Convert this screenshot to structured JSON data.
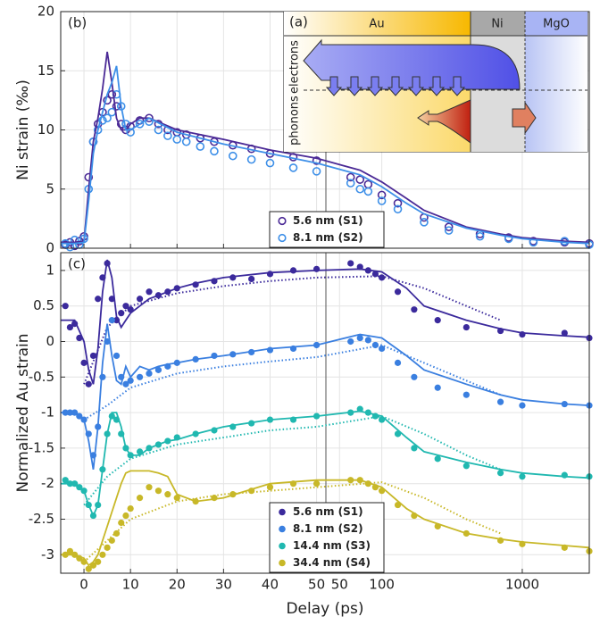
{
  "diagram": {
    "panel": "(a)",
    "labels": [
      "Au",
      "Ni",
      "MgO"
    ],
    "electrons": "electrons",
    "phonons": "phonons"
  },
  "chart_data": [
    {
      "type": "scatter",
      "panel": "(b)",
      "ylabel": "Ni strain (‰)",
      "ylim": [
        0,
        20
      ],
      "yticks": [
        0,
        5,
        10,
        15,
        20
      ],
      "grid": true,
      "marker": "open",
      "legend": "bottom-center",
      "x": [
        -4,
        -3,
        -2,
        -1,
        0,
        1,
        2,
        3,
        4,
        5,
        6,
        7,
        8,
        9,
        10,
        12,
        14,
        16,
        18,
        20,
        22,
        25,
        28,
        32,
        36,
        40,
        45,
        50,
        60,
        70,
        80,
        100,
        130,
        200,
        300,
        500,
        800,
        1200,
        2000,
        3000
      ],
      "series": [
        {
          "name": "5.6 nm (S1)",
          "color": "#4b2a96",
          "values": [
            0.3,
            0.5,
            0.2,
            0.6,
            1,
            6,
            9,
            10.5,
            11.5,
            12.5,
            13,
            12,
            10.5,
            10,
            10.3,
            10.8,
            11,
            10.5,
            10,
            9.8,
            9.6,
            9.3,
            9,
            8.7,
            8.4,
            8,
            7.7,
            7.4,
            6,
            5.8,
            5.4,
            4.5,
            3.8,
            2.6,
            1.8,
            1.2,
            0.9,
            0.6,
            0.5,
            0.4
          ]
        },
        {
          "name": "8.1 nm (S2)",
          "color": "#3d8fe8",
          "values": [
            0.4,
            0.1,
            0.7,
            0.3,
            0.8,
            5,
            9,
            10,
            10.8,
            11,
            11.5,
            13,
            12,
            10.5,
            9.8,
            10.5,
            10.7,
            10,
            9.5,
            9.2,
            9,
            8.6,
            8.2,
            7.8,
            7.5,
            7.2,
            6.8,
            6.5,
            5.5,
            5,
            4.8,
            4,
            3.3,
            2.2,
            1.5,
            1,
            0.8,
            0.5,
            0.6,
            0.3
          ]
        }
      ],
      "fit_x": [
        -5,
        -2,
        0,
        1,
        2,
        3,
        4,
        5,
        6,
        7,
        8,
        9,
        10,
        12,
        14,
        20,
        30,
        40,
        50,
        70,
        100,
        150,
        200,
        400,
        700,
        1000,
        2000,
        3000
      ],
      "fits": [
        {
          "color": "#4b2a96",
          "values": [
            0.5,
            0.5,
            0.6,
            5,
            9,
            11,
            13.5,
            16.6,
            14,
            11,
            10,
            10,
            10.5,
            11,
            11,
            10,
            9.2,
            8.3,
            7.6,
            6.6,
            5.6,
            4.2,
            3.2,
            1.8,
            1.2,
            0.9,
            0.6,
            0.5
          ]
        },
        {
          "color": "#3d8fe8",
          "values": [
            0.4,
            0.4,
            0.5,
            4,
            8,
            10,
            11.5,
            13,
            14,
            15.4,
            12,
            10,
            10,
            10.5,
            11,
            9.8,
            8.8,
            8,
            7.2,
            6.2,
            5.2,
            3.8,
            2.9,
            1.7,
            1.1,
            0.8,
            0.5,
            0.4
          ]
        }
      ]
    },
    {
      "type": "scatter",
      "panel": "(c)",
      "ylabel": "Normalized Au strain",
      "xlabel": "Delay (ps)",
      "ylim": [
        -3.26,
        1.25
      ],
      "yticks": [
        1,
        0.5,
        0,
        -0.5,
        -1,
        -1.5,
        -2,
        -2.5,
        -3
      ],
      "grid": true,
      "marker": "filled",
      "legend": "bottom-center",
      "xlim": [
        -5,
        3000
      ],
      "x_break": [
        52,
        40
      ],
      "xticks_linear": [
        0,
        10,
        20,
        30,
        40,
        50
      ],
      "xticks_log": [
        50,
        100,
        1000
      ],
      "x": [
        -4,
        -3,
        -2,
        -1,
        0,
        1,
        2,
        3,
        4,
        5,
        6,
        7,
        8,
        9,
        10,
        12,
        14,
        16,
        18,
        20,
        24,
        28,
        32,
        36,
        40,
        45,
        50,
        60,
        70,
        80,
        90,
        100,
        130,
        170,
        250,
        400,
        700,
        1000,
        2000,
        3000
      ],
      "series": [
        {
          "name": "5.6 nm (S1)",
          "color": "#3b2a9c",
          "values": [
            0.5,
            0.2,
            0.25,
            0.05,
            -0.3,
            -0.6,
            -0.2,
            0.6,
            0.9,
            1.1,
            0.6,
            0.3,
            0.4,
            0.5,
            0.45,
            0.6,
            0.7,
            0.65,
            0.7,
            0.75,
            0.8,
            0.85,
            0.9,
            0.88,
            0.95,
            1,
            1.02,
            1.1,
            1.05,
            1,
            0.95,
            0.9,
            0.7,
            0.45,
            0.3,
            0.2,
            0.15,
            0.1,
            0.12,
            0.05
          ]
        },
        {
          "name": "8.1 nm (S2)",
          "color": "#3a7fe0",
          "values": [
            -1,
            -1,
            -1,
            -1.05,
            -1.1,
            -1.3,
            -1.6,
            -1.2,
            -0.5,
            0,
            0.3,
            -0.2,
            -0.5,
            -0.6,
            -0.55,
            -0.5,
            -0.45,
            -0.4,
            -0.35,
            -0.3,
            -0.25,
            -0.2,
            -0.18,
            -0.15,
            -0.12,
            -0.1,
            -0.05,
            0,
            0.05,
            0.02,
            -0.05,
            -0.1,
            -0.3,
            -0.5,
            -0.65,
            -0.75,
            -0.85,
            -0.9,
            -0.88,
            -0.9
          ]
        },
        {
          "name": "14.4 nm (S3)",
          "color": "#20b8b0",
          "values": [
            -1.95,
            -2,
            -2,
            -2.05,
            -2.1,
            -2.3,
            -2.45,
            -2.3,
            -1.8,
            -1.3,
            -1.05,
            -1.1,
            -1.3,
            -1.5,
            -1.6,
            -1.55,
            -1.5,
            -1.45,
            -1.4,
            -1.35,
            -1.3,
            -1.25,
            -1.2,
            -1.15,
            -1.1,
            -1.1,
            -1.05,
            -1,
            -0.95,
            -1,
            -1.05,
            -1.1,
            -1.3,
            -1.5,
            -1.65,
            -1.75,
            -1.85,
            -1.9,
            -1.88,
            -1.9
          ]
        },
        {
          "name": "34.4 nm (S4)",
          "color": "#c8b828",
          "values": [
            -3,
            -2.95,
            -3,
            -3.05,
            -3.1,
            -3.2,
            -3.15,
            -3.1,
            -3,
            -2.9,
            -2.8,
            -2.7,
            -2.55,
            -2.45,
            -2.35,
            -2.2,
            -2.05,
            -2.1,
            -2.15,
            -2.2,
            -2.25,
            -2.2,
            -2.15,
            -2.1,
            -2.05,
            -2,
            -2,
            -1.95,
            -1.95,
            -2,
            -2.05,
            -2.1,
            -2.3,
            -2.45,
            -2.6,
            -2.7,
            -2.8,
            -2.85,
            -2.9,
            -2.95
          ]
        }
      ],
      "fit_x": [
        -5,
        -2,
        0,
        1,
        2,
        3,
        4,
        5,
        6,
        7,
        8,
        9,
        10,
        12,
        14,
        16,
        18,
        20,
        24,
        30,
        40,
        50,
        70,
        100,
        150,
        200,
        400,
        700,
        1000,
        2000,
        3000
      ],
      "fits": [
        {
          "color": "#3b2a9c",
          "values": [
            0.3,
            0.3,
            0,
            -0.4,
            -0.6,
            -0.1,
            0.7,
            1.15,
            0.9,
            0.35,
            0.2,
            0.3,
            0.4,
            0.5,
            0.6,
            0.65,
            0.7,
            0.75,
            0.82,
            0.9,
            0.97,
            1,
            1.02,
            0.98,
            0.75,
            0.5,
            0.3,
            0.18,
            0.12,
            0.08,
            0.06
          ]
        },
        {
          "color": "#3a7fe0",
          "values": [
            -1,
            -1,
            -1.1,
            -1.4,
            -1.8,
            -1.2,
            -0.3,
            0.25,
            -0.2,
            -0.55,
            -0.6,
            -0.35,
            -0.5,
            -0.35,
            -0.4,
            -0.35,
            -0.32,
            -0.3,
            -0.25,
            -0.2,
            -0.1,
            -0.05,
            0.1,
            0.05,
            -0.2,
            -0.4,
            -0.6,
            -0.75,
            -0.82,
            -0.88,
            -0.9
          ]
        },
        {
          "color": "#20b8b0",
          "values": [
            -2,
            -2,
            -2.1,
            -2.3,
            -2.45,
            -2.3,
            -1.8,
            -1.3,
            -1,
            -1,
            -1.2,
            -1.5,
            -1.6,
            -1.6,
            -1.5,
            -1.45,
            -1.4,
            -1.38,
            -1.3,
            -1.2,
            -1.1,
            -1.05,
            -0.98,
            -1.05,
            -1.35,
            -1.55,
            -1.7,
            -1.8,
            -1.85,
            -1.9,
            -1.92
          ]
        },
        {
          "color": "#c8b828",
          "values": [
            -3,
            -3,
            -3.05,
            -3.15,
            -3.1,
            -3,
            -2.8,
            -2.6,
            -2.4,
            -2.2,
            -2,
            -1.85,
            -1.82,
            -1.82,
            -1.82,
            -1.85,
            -1.9,
            -2.15,
            -2.25,
            -2.2,
            -2,
            -1.95,
            -1.95,
            -2.05,
            -2.35,
            -2.5,
            -2.7,
            -2.78,
            -2.82,
            -2.87,
            -2.9
          ]
        }
      ],
      "trend_x": [
        0,
        5,
        10,
        20,
        30,
        40,
        50,
        100,
        200,
        400,
        700
      ],
      "trends": [
        {
          "color": "#3b2a9c",
          "values": [
            -0.6,
            0.2,
            0.5,
            0.68,
            0.78,
            0.85,
            0.9,
            0.92,
            0.75,
            0.5,
            0.3
          ]
        },
        {
          "color": "#3a7fe0",
          "values": [
            -1.1,
            -0.9,
            -0.65,
            -0.45,
            -0.35,
            -0.28,
            -0.22,
            -0.05,
            -0.3,
            -0.55,
            -0.75
          ]
        },
        {
          "color": "#20b8b0",
          "values": [
            -2.3,
            -1.9,
            -1.65,
            -1.45,
            -1.35,
            -1.25,
            -1.2,
            -1.05,
            -1.3,
            -1.6,
            -1.8
          ]
        },
        {
          "color": "#c8b828",
          "values": [
            -3.1,
            -2.8,
            -2.5,
            -2.25,
            -2.15,
            -2.1,
            -2.05,
            -1.98,
            -2.2,
            -2.5,
            -2.7
          ]
        }
      ]
    }
  ]
}
